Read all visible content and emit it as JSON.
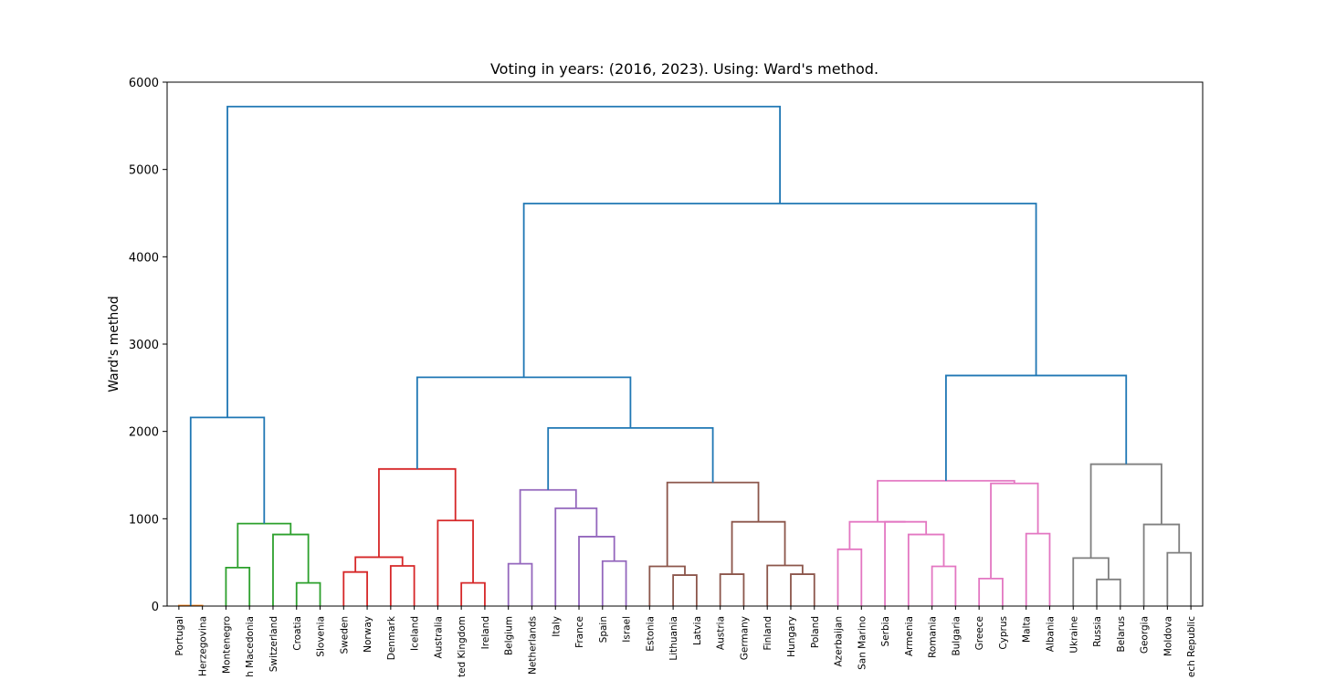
{
  "chart_data": {
    "type": "dendrogram",
    "title": "Voting in years: (2016, 2023). Using: Ward's method.",
    "xlabel": "",
    "ylabel": "Ward's method",
    "ylim": [
      0,
      6000
    ],
    "yticks": [
      0,
      1000,
      2000,
      3000,
      4000,
      5000,
      6000
    ],
    "grid": false,
    "leaves": [
      "Portugal",
      "Herzegovina",
      "Montenegro",
      "h Macedonia",
      "Switzerland",
      "Croatia",
      "Slovenia",
      "Sweden",
      "Norway",
      "Denmark",
      "Iceland",
      "Australia",
      "ted Kingdom",
      "Ireland",
      "Belgium",
      "Netherlands",
      "Italy",
      "France",
      "Spain",
      "Israel",
      "Estonia",
      "Lithuania",
      "Latvia",
      "Austria",
      "Germany",
      "Finland",
      "Hungary",
      "Poland",
      "Azerbaijan",
      "San Marino",
      "Serbia",
      "Armenia",
      "Romania",
      "Bulgaria",
      "Greece",
      "Cyprus",
      "Malta",
      "Albania",
      "Ukraine",
      "Russia",
      "Belarus",
      "Georgia",
      "Moldova",
      "ech Republic"
    ],
    "colors": {
      "above_threshold": "#1f77b4",
      "c_orange": "#ff7f0e",
      "c_green": "#2ca02c",
      "c_red": "#d62728",
      "c_purple": "#9467bd",
      "c_brown": "#8c564b",
      "c_pink": "#e377c2",
      "c_gray": "#7f7f7f"
    },
    "merges": [
      {
        "a": 0,
        "b": 1,
        "h": 5,
        "color": "c_orange"
      },
      {
        "a": 2,
        "b": 3,
        "h": 440,
        "color": "c_green"
      },
      {
        "a": 5,
        "b": 6,
        "h": 265,
        "color": "c_green"
      },
      {
        "a": 4,
        "b": "c_croatia",
        "h": 820,
        "color": "c_green"
      },
      {
        "a": "c_mont",
        "b": "c_swiss",
        "h": 945,
        "color": "c_green"
      },
      {
        "a": "c_port",
        "b": "c_green",
        "h": 2160,
        "color": "above_threshold"
      },
      {
        "a": 7,
        "b": 8,
        "h": 390,
        "color": "c_red"
      },
      {
        "a": 9,
        "b": 10,
        "h": 460,
        "color": "c_red"
      },
      {
        "a": "c_swe",
        "b": "c_den",
        "h": 560,
        "color": "c_red"
      },
      {
        "a": 12,
        "b": 13,
        "h": 265,
        "color": "c_red"
      },
      {
        "a": 11,
        "b": "c_uk",
        "h": 980,
        "color": "c_red"
      },
      {
        "a": "c_nordic",
        "b": "c_aus",
        "h": 1570,
        "color": "c_red"
      },
      {
        "a": 14,
        "b": 15,
        "h": 485,
        "color": "c_purple"
      },
      {
        "a": 18,
        "b": 19,
        "h": 515,
        "color": "c_purple"
      },
      {
        "a": 17,
        "b": "c_spain",
        "h": 795,
        "color": "c_purple"
      },
      {
        "a": 16,
        "b": "c_fra",
        "h": 1120,
        "color": "c_purple"
      },
      {
        "a": "c_bel",
        "b": "c_ita",
        "h": 1330,
        "color": "c_purple"
      },
      {
        "a": 21,
        "b": 22,
        "h": 355,
        "color": "c_brown"
      },
      {
        "a": 20,
        "b": "c_lit",
        "h": 455,
        "color": "c_brown"
      },
      {
        "a": 23,
        "b": 24,
        "h": 365,
        "color": "c_brown"
      },
      {
        "a": 26,
        "b": 27,
        "h": 365,
        "color": "c_brown"
      },
      {
        "a": 25,
        "b": "c_hun",
        "h": 465,
        "color": "c_brown"
      },
      {
        "a": "c_aut",
        "b": "c_fin",
        "h": 965,
        "color": "c_brown"
      },
      {
        "a": "c_est",
        "b": "c_ger",
        "h": 1415,
        "color": "c_brown"
      },
      {
        "a": "c_purple",
        "b": "c_brown",
        "h": 2040,
        "color": "above_threshold"
      },
      {
        "a": "c_red",
        "b": "c_west",
        "h": 2620,
        "color": "above_threshold"
      },
      {
        "a": 28,
        "b": 29,
        "h": 650,
        "color": "c_pink"
      },
      {
        "a": 32,
        "b": 33,
        "h": 455,
        "color": "c_pink"
      },
      {
        "a": 31,
        "b": "c_rom",
        "h": 820,
        "color": "c_pink"
      },
      {
        "a": 30,
        "b": "c_arm",
        "h": 965,
        "color": "c_pink"
      },
      {
        "a": "c_aze",
        "b": "c_ser",
        "h": 965,
        "color": "c_pink"
      },
      {
        "a": 34,
        "b": 35,
        "h": 315,
        "color": "c_pink"
      },
      {
        "a": 36,
        "b": 37,
        "h": 830,
        "color": "c_pink"
      },
      {
        "a": "c_gre",
        "b": "c_mal",
        "h": 1405,
        "color": "c_pink"
      },
      {
        "a": "c_aze2",
        "b": "c_gre2",
        "h": 1435,
        "color": "c_pink"
      },
      {
        "a": 39,
        "b": 40,
        "h": 305,
        "color": "c_gray"
      },
      {
        "a": 38,
        "b": "c_rus",
        "h": 550,
        "color": "c_gray"
      },
      {
        "a": 42,
        "b": 43,
        "h": 610,
        "color": "c_gray"
      },
      {
        "a": 41,
        "b": "c_mol",
        "h": 935,
        "color": "c_gray"
      },
      {
        "a": "c_ukr",
        "b": "c_geo",
        "h": 1625,
        "color": "c_gray"
      },
      {
        "a": "c_pink",
        "b": "c_gray",
        "h": 2640,
        "color": "above_threshold"
      },
      {
        "a": "c_mid",
        "b": "c_east",
        "h": 4610,
        "color": "above_threshold"
      },
      {
        "a": "c_left",
        "b": "c_right",
        "h": 5720,
        "color": "above_threshold"
      }
    ]
  }
}
